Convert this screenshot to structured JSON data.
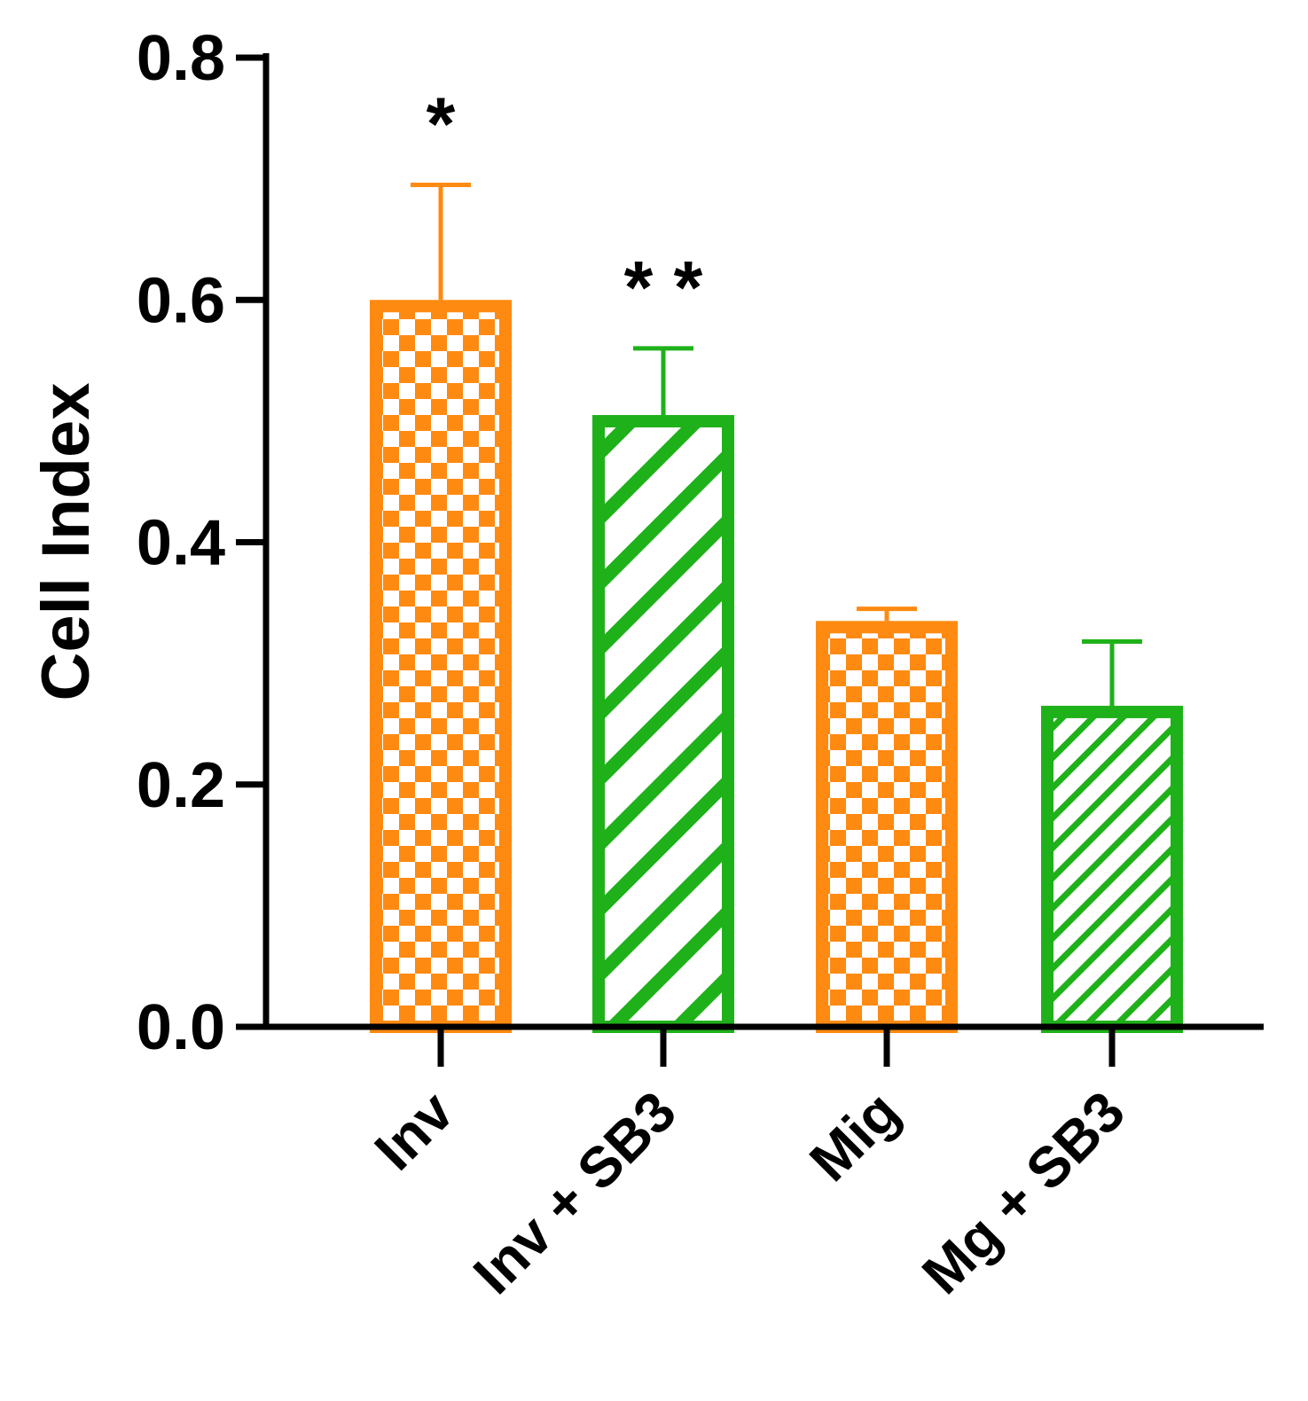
{
  "chart_data": {
    "type": "bar",
    "title": "",
    "xlabel": "",
    "ylabel": "Cell Index",
    "ylim": [
      0,
      0.8
    ],
    "yticks": [
      0.0,
      0.2,
      0.4,
      0.6,
      0.8
    ],
    "ytick_labels": [
      "0.0",
      "0.2",
      "0.4",
      "0.6",
      "0.8"
    ],
    "grid": false,
    "legend": "none",
    "categories": [
      "Inv",
      "Inv + SB3",
      "Mig",
      "Mg + SB3"
    ],
    "values": [
      0.6,
      0.505,
      0.335,
      0.265
    ],
    "error_upper": [
      0.695,
      0.56,
      0.345,
      0.318
    ],
    "significance": [
      "*",
      "* *",
      "",
      ""
    ],
    "colors": [
      "#ff8a12",
      "#1fb11a",
      "#ff8a12",
      "#1fb11a"
    ],
    "patterns": [
      "checker",
      "diagonal-wide",
      "checker",
      "diagonal-narrow"
    ]
  }
}
